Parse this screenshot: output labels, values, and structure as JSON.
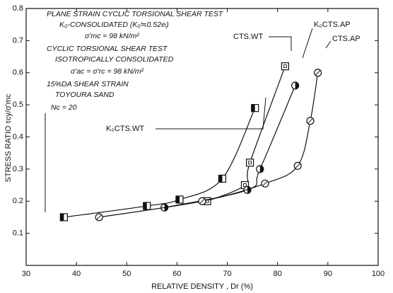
{
  "chart_data": {
    "type": "line",
    "xlabel": "RELATIVE DENSITY , Dr  (%)",
    "ylabel": "STRESS RATIO  τcy/σ'mc",
    "xlim": [
      30,
      100
    ],
    "xticks": [
      30,
      40,
      50,
      60,
      70,
      80,
      90,
      100
    ],
    "ylim": [
      0,
      0.8
    ],
    "yticks": [
      0.1,
      0.2,
      0.3,
      0.4,
      0.5,
      0.6,
      0.7,
      0.8
    ],
    "annotations": [
      "PLANE STRAIN CYCLIC TORSIONAL SHEAR TEST",
      "K₀-CONSOLIDATED (K₀≒0.52eᵢ)",
      "σ'mc = 98 kN/m²",
      "CYCLIC TORSIONAL SHEAR TEST",
      "ISOTROPICALLY CONSOLIDATED",
      "σ'ac = σ'rc = 98 kN/m²",
      "15%DA SHEAR STRAIN",
      "TOYOURA SAND",
      "Nc = 20"
    ],
    "series": [
      {
        "name": "K₀CTS.WT",
        "color": "#111111",
        "marker": "half-square",
        "x": [
          37.5,
          54,
          60.5,
          69,
          75.5
        ],
        "values": [
          0.15,
          0.185,
          0.205,
          0.27,
          0.49
        ]
      },
      {
        "name": "CTS.WT",
        "color": "#111111",
        "marker": "dot-square",
        "x": [
          66,
          73.5,
          74.5,
          81.5
        ],
        "values": [
          0.2,
          0.25,
          0.32,
          0.62
        ]
      },
      {
        "name": "K₀CTS.AP",
        "color": "#111111",
        "marker": "half-circle",
        "x": [
          57.5,
          74,
          76.5,
          83.5
        ],
        "values": [
          0.18,
          0.235,
          0.3,
          0.56
        ]
      },
      {
        "name": "CTS.AP",
        "color": "#111111",
        "marker": "slash-circle",
        "x": [
          44.5,
          65,
          77.5,
          84,
          86.5,
          88
        ],
        "values": [
          0.15,
          0.2,
          0.255,
          0.31,
          0.45,
          0.6
        ]
      }
    ]
  }
}
